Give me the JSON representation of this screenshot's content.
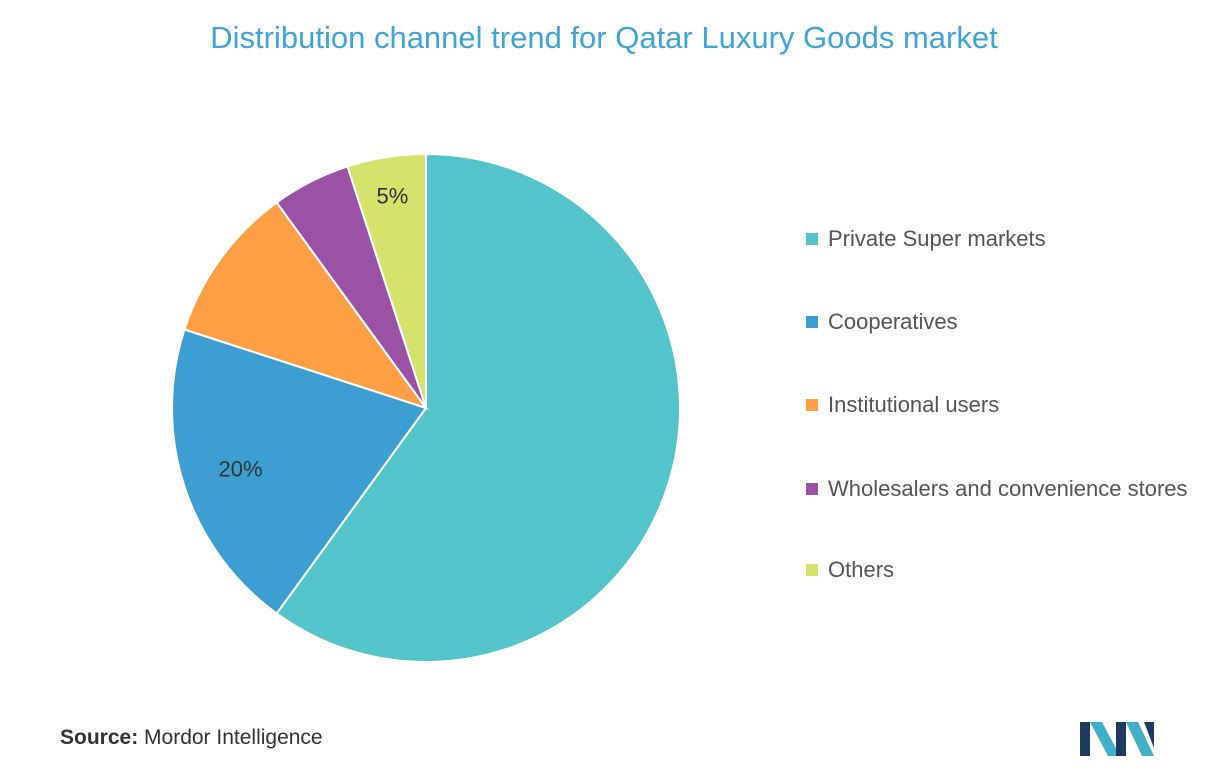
{
  "chart_data": {
    "type": "pie",
    "title": "Distribution channel trend for Qatar Luxury Goods market",
    "slices": [
      {
        "label": "Private Super markets",
        "value": 60,
        "color": "#52c4ca",
        "data_label": ""
      },
      {
        "label": "Cooperatives",
        "value": 20,
        "color": "#3d9fd1",
        "data_label": "20%"
      },
      {
        "label": "Institutional users",
        "value": 10,
        "color": "#ff9f43",
        "data_label": ""
      },
      {
        "label": "Wholesalers and convenience stores",
        "value": 5,
        "color": "#9b51a4",
        "data_label": ""
      },
      {
        "label": "Others",
        "value": 5,
        "color": "#d4e36c",
        "data_label": "5%"
      }
    ],
    "legend_position": "right"
  },
  "source": {
    "prefix": "Source:",
    "text": " Mordor Intelligence"
  },
  "logo": {
    "icon": "mordor-intelligence-logo",
    "colors": [
      "#1e3a5f",
      "#3fb0c8"
    ]
  }
}
